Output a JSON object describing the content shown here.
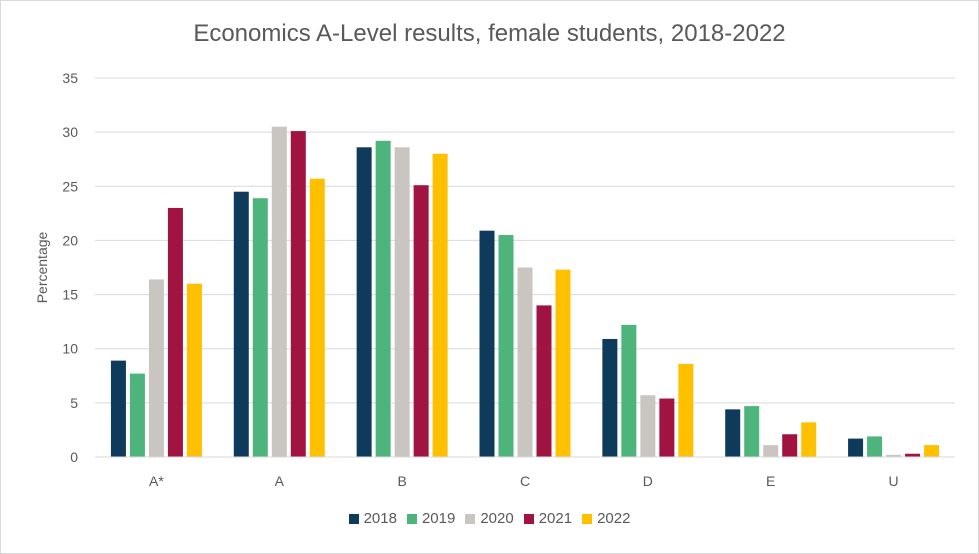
{
  "chart_data": {
    "type": "bar",
    "title": "Economics A-Level results, female students, 2018-2022",
    "xlabel": "",
    "ylabel": "Percentage",
    "ylim": [
      0,
      35
    ],
    "yticks": [
      0,
      5,
      10,
      15,
      20,
      25,
      30,
      35
    ],
    "grid": true,
    "legend_position": "bottom",
    "categories": [
      "A*",
      "A",
      "B",
      "C",
      "D",
      "E",
      "U"
    ],
    "series": [
      {
        "name": "2018",
        "color": "#0e3a5c",
        "values": [
          8.9,
          24.5,
          28.6,
          20.9,
          10.9,
          4.4,
          1.7
        ]
      },
      {
        "name": "2019",
        "color": "#4db57b",
        "values": [
          7.7,
          23.9,
          29.2,
          20.5,
          12.2,
          4.7,
          1.9
        ]
      },
      {
        "name": "2020",
        "color": "#c9c5c0",
        "values": [
          16.4,
          30.5,
          28.6,
          17.5,
          5.7,
          1.1,
          0.2
        ]
      },
      {
        "name": "2021",
        "color": "#a11442",
        "values": [
          23.0,
          30.1,
          25.1,
          14.0,
          5.4,
          2.1,
          0.3
        ]
      },
      {
        "name": "2022",
        "color": "#ffc000",
        "values": [
          16.0,
          25.7,
          28.0,
          17.3,
          8.6,
          3.2,
          1.1
        ]
      }
    ]
  }
}
